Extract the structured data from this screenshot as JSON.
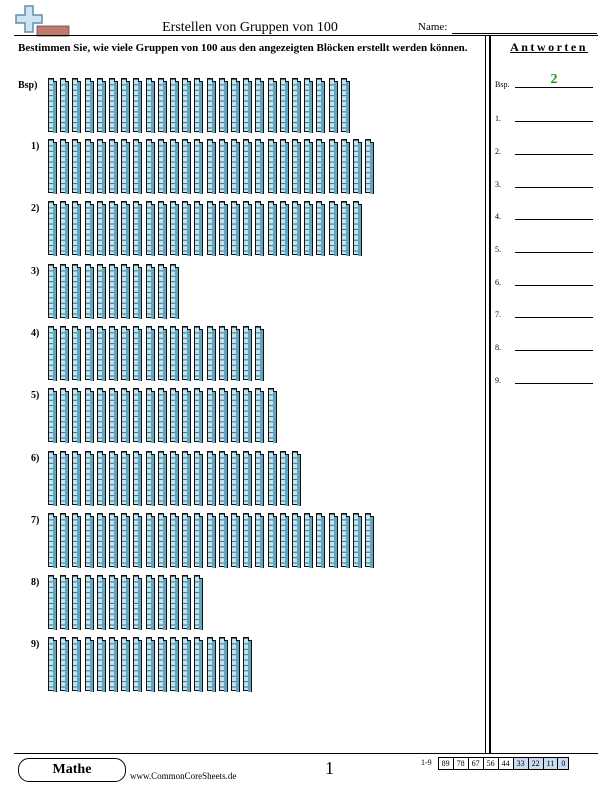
{
  "header": {
    "title": "Erstellen von Gruppen von 100",
    "name_label": "Name:"
  },
  "instructions": "Bestimmen Sie, wie viele Gruppen von 100 aus den angezeigten Blöcken erstellt werden können.",
  "problems": [
    {
      "label": "Bsp)",
      "tens": 25
    },
    {
      "label": "1)",
      "tens": 27
    },
    {
      "label": "2)",
      "tens": 26
    },
    {
      "label": "3)",
      "tens": 11
    },
    {
      "label": "4)",
      "tens": 18
    },
    {
      "label": "5)",
      "tens": 19
    },
    {
      "label": "6)",
      "tens": 21
    },
    {
      "label": "7)",
      "tens": 27
    },
    {
      "label": "8)",
      "tens": 13
    },
    {
      "label": "9)",
      "tens": 17
    }
  ],
  "answers": {
    "title": "Antworten",
    "example_label": "Bsp.",
    "example_value": "2",
    "labels": [
      "1.",
      "2.",
      "3.",
      "4.",
      "5.",
      "6.",
      "7.",
      "8.",
      "9."
    ]
  },
  "footer": {
    "subject": "Mathe",
    "website": "www.CommonCoreSheets.de",
    "page_number": "1",
    "score_range": "1-9",
    "scores": [
      "89",
      "78",
      "67",
      "56",
      "44",
      "33",
      "22",
      "11",
      "0"
    ],
    "highlighted_scores": [
      "33",
      "22",
      "11",
      "0"
    ]
  },
  "colors": {
    "rod_fill": "#bfe4f2",
    "rod_side": "#5fa6c3",
    "answer_green": "#1a9b1a",
    "score_highlight": "#c9dcf2"
  }
}
